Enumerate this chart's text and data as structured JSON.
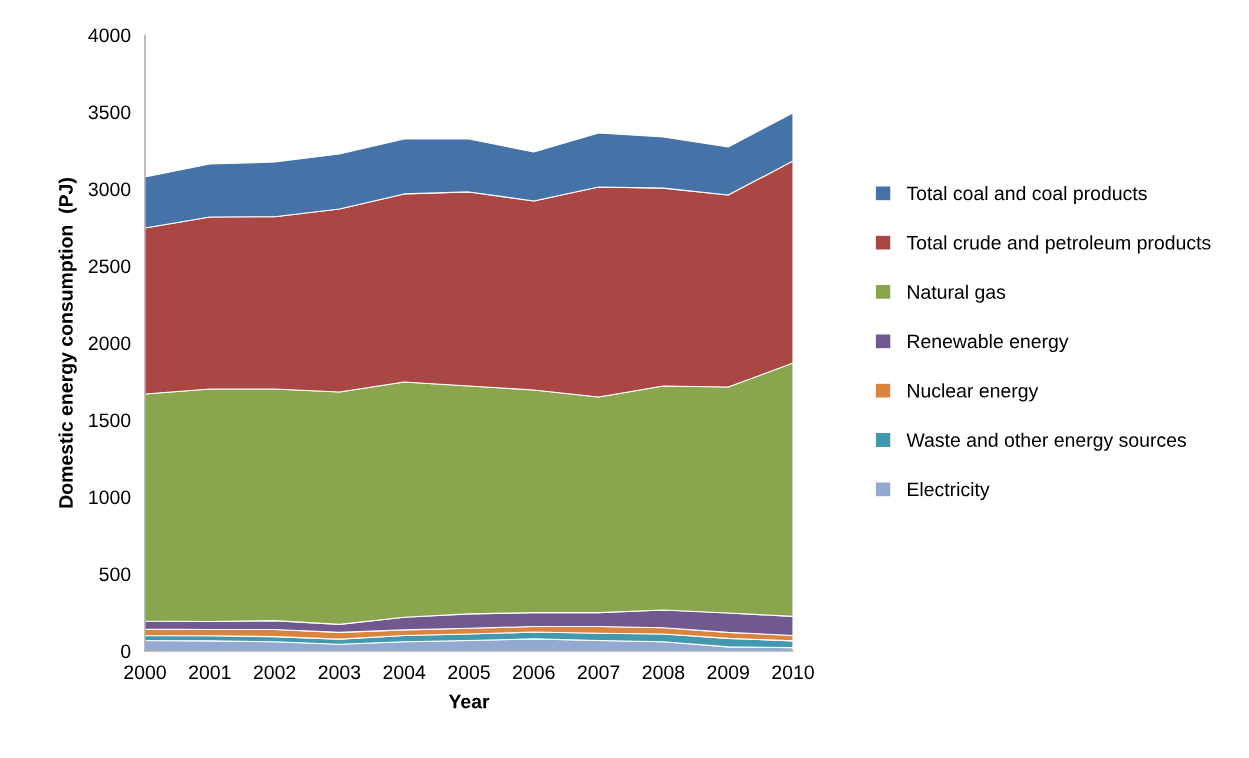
{
  "chart_data": {
    "type": "area",
    "stacked": true,
    "xlabel": "Year",
    "ylabel": "Domestic energy consumption  (PJ)",
    "x": [
      2000,
      2001,
      2002,
      2003,
      2004,
      2005,
      2006,
      2007,
      2008,
      2009,
      2010
    ],
    "xlim": [
      2000,
      2010
    ],
    "xticks": [
      2000,
      2001,
      2002,
      2003,
      2004,
      2005,
      2006,
      2007,
      2008,
      2009,
      2010
    ],
    "ylim": [
      0,
      4000
    ],
    "yticks": [
      0,
      500,
      1000,
      1500,
      2000,
      2500,
      3000,
      3500,
      4000
    ],
    "grid": false,
    "legend": "right",
    "series": [
      {
        "name": "Electricity",
        "color": "#93a9cf",
        "values": [
          68,
          66,
          60,
          44,
          60,
          68,
          79,
          68,
          60,
          27,
          22
        ]
      },
      {
        "name": "Waste and other energy sources",
        "color": "#4198af",
        "values": [
          33,
          33,
          33,
          33,
          41,
          42,
          44,
          47,
          50,
          55,
          44
        ]
      },
      {
        "name": "Nuclear energy",
        "color": "#db843d",
        "values": [
          41,
          41,
          47,
          44,
          36,
          38,
          36,
          44,
          41,
          39,
          35
        ]
      },
      {
        "name": "Renewable energy",
        "color": "#71588f",
        "values": [
          53,
          52,
          57,
          52,
          82,
          93,
          90,
          90,
          115,
          126,
          124
        ]
      },
      {
        "name": "Natural gas",
        "color": "#89a54e",
        "values": [
          1474,
          1509,
          1504,
          1509,
          1528,
          1480,
          1446,
          1400,
          1455,
          1467,
          1645
        ]
      },
      {
        "name": "Total crude and petroleum products",
        "color": "#aa4643",
        "values": [
          1078,
          1117,
          1119,
          1188,
          1221,
          1260,
          1227,
          1364,
          1285,
          1247,
          1312
        ]
      },
      {
        "name": "Total coal and coal products",
        "color": "#4572a7",
        "values": [
          331,
          344,
          355,
          357,
          357,
          344,
          318,
          351,
          332,
          312,
          312
        ]
      }
    ]
  }
}
